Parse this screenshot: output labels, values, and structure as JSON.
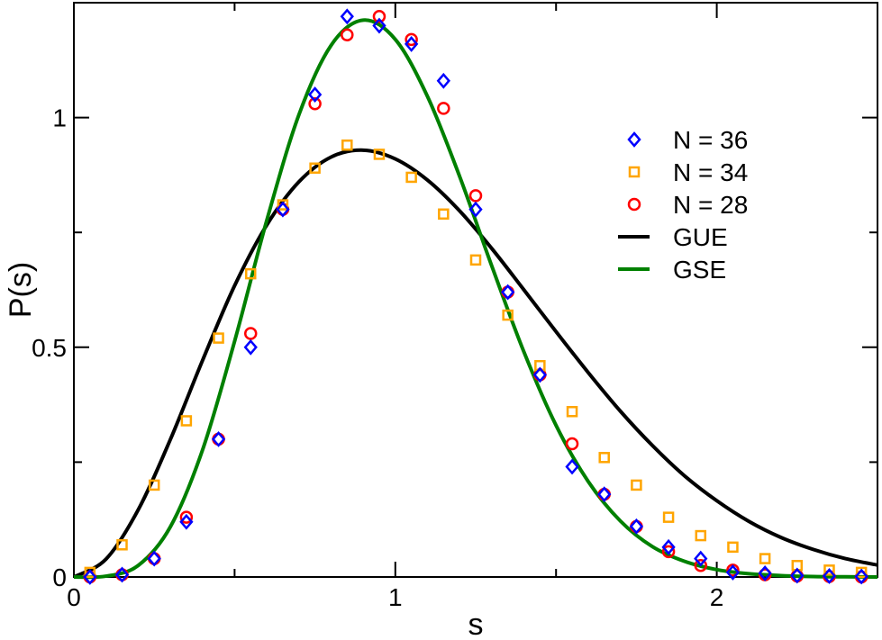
{
  "chart_data": {
    "type": "scatter",
    "title": "",
    "xlabel": "s",
    "ylabel": "P(s)",
    "xlim": [
      0,
      2.5
    ],
    "ylim": [
      0,
      1.25
    ],
    "x_ticks": [
      {
        "value": 0,
        "label": "0"
      },
      {
        "value": 1,
        "label": "1"
      },
      {
        "value": 2,
        "label": "2"
      }
    ],
    "y_ticks": [
      {
        "value": 0,
        "label": "0"
      },
      {
        "value": 0.5,
        "label": "0.5"
      },
      {
        "value": 1,
        "label": "1"
      }
    ],
    "x_minor_step": 0.5,
    "y_minor_step": 0.25,
    "grid": false,
    "legend_position": "top-right",
    "colors": {
      "n36": "#0000ff",
      "n34": "#ffa500",
      "n28": "#ff0000",
      "gue": "#000000",
      "gse": "#008000"
    },
    "series": [
      {
        "name": "N = 36",
        "kind": "points",
        "marker": "diamond",
        "color_key": "n36",
        "x": [
          0.05,
          0.15,
          0.25,
          0.35,
          0.45,
          0.55,
          0.65,
          0.75,
          0.85,
          0.95,
          1.05,
          1.15,
          1.25,
          1.35,
          1.45,
          1.55,
          1.65,
          1.75,
          1.85,
          1.95,
          2.05,
          2.15,
          2.25,
          2.35,
          2.45
        ],
        "y": [
          0.0,
          0.005,
          0.04,
          0.12,
          0.3,
          0.5,
          0.8,
          1.05,
          1.22,
          1.2,
          1.16,
          1.08,
          0.8,
          0.62,
          0.44,
          0.24,
          0.18,
          0.11,
          0.065,
          0.04,
          0.01,
          0.008,
          0.003,
          0.002,
          0.001
        ]
      },
      {
        "name": "N = 34",
        "kind": "points",
        "marker": "square",
        "color_key": "n34",
        "x": [
          0.05,
          0.15,
          0.25,
          0.35,
          0.45,
          0.55,
          0.65,
          0.75,
          0.85,
          0.95,
          1.05,
          1.15,
          1.25,
          1.35,
          1.45,
          1.55,
          1.65,
          1.75,
          1.85,
          1.95,
          2.05,
          2.15,
          2.25,
          2.35,
          2.45
        ],
        "y": [
          0.01,
          0.07,
          0.2,
          0.34,
          0.52,
          0.66,
          0.81,
          0.89,
          0.94,
          0.92,
          0.87,
          0.79,
          0.69,
          0.57,
          0.46,
          0.36,
          0.26,
          0.2,
          0.13,
          0.09,
          0.065,
          0.04,
          0.025,
          0.015,
          0.01
        ]
      },
      {
        "name": "N = 28",
        "kind": "points",
        "marker": "circle",
        "color_key": "n28",
        "x": [
          0.05,
          0.15,
          0.25,
          0.35,
          0.45,
          0.55,
          0.65,
          0.75,
          0.85,
          0.95,
          1.05,
          1.15,
          1.25,
          1.35,
          1.45,
          1.55,
          1.65,
          1.75,
          1.85,
          1.95,
          2.05,
          2.15,
          2.25,
          2.35,
          2.45
        ],
        "y": [
          0.0,
          0.005,
          0.04,
          0.13,
          0.3,
          0.53,
          0.8,
          1.03,
          1.18,
          1.22,
          1.17,
          1.02,
          0.83,
          0.62,
          0.44,
          0.29,
          0.18,
          0.11,
          0.055,
          0.025,
          0.015,
          0.005,
          0.002,
          0.001,
          0.0
        ]
      },
      {
        "name": "GUE",
        "kind": "line",
        "color_key": "gue",
        "x": [
          0,
          0.1,
          0.2,
          0.3,
          0.4,
          0.5,
          0.6,
          0.7,
          0.8,
          0.9,
          1.0,
          1.1,
          1.2,
          1.3,
          1.4,
          1.5,
          1.6,
          1.7,
          1.8,
          1.9,
          2.0,
          2.1,
          2.2,
          2.3,
          2.4,
          2.5
        ],
        "y": [
          0,
          0.039,
          0.146,
          0.299,
          0.471,
          0.634,
          0.766,
          0.86,
          0.914,
          0.929,
          0.91,
          0.864,
          0.797,
          0.715,
          0.625,
          0.534,
          0.445,
          0.361,
          0.286,
          0.22,
          0.166,
          0.121,
          0.086,
          0.06,
          0.04,
          0.026
        ]
      },
      {
        "name": "GSE",
        "kind": "line",
        "color_key": "gse",
        "x": [
          0,
          0.1,
          0.2,
          0.3,
          0.4,
          0.5,
          0.6,
          0.7,
          0.8,
          0.9,
          1.0,
          1.1,
          1.2,
          1.3,
          1.4,
          1.5,
          1.6,
          1.7,
          1.8,
          1.9,
          2.0,
          2.1,
          2.2,
          2.3,
          2.4,
          2.5
        ],
        "y": [
          0,
          0.0018,
          0.025,
          0.109,
          0.276,
          0.513,
          0.776,
          1.006,
          1.157,
          1.212,
          1.17,
          1.046,
          0.872,
          0.677,
          0.49,
          0.33,
          0.208,
          0.122,
          0.066,
          0.034,
          0.016,
          0.007,
          0.003,
          0.001,
          0.0004,
          0.0001
        ]
      }
    ]
  }
}
